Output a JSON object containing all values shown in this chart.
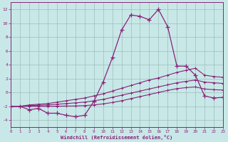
{
  "hours": [
    0,
    1,
    2,
    3,
    4,
    5,
    6,
    7,
    8,
    9,
    10,
    11,
    12,
    13,
    14,
    15,
    16,
    17,
    18,
    19,
    20,
    21,
    22,
    23
  ],
  "temp": [
    -2,
    -2,
    -2.5,
    -2.3,
    -3.0,
    -3.0,
    -3.3,
    -3.5,
    -3.3,
    -1.3,
    1.5,
    5.0,
    9.0,
    11.2,
    11.0,
    10.5,
    12.0,
    9.5,
    3.8,
    3.8,
    2.5,
    -0.5,
    -0.8,
    -0.7
  ],
  "line_top": [
    -2,
    -2,
    -1.8,
    -1.7,
    -1.6,
    -1.4,
    -1.2,
    -1.0,
    -0.8,
    -0.5,
    -0.2,
    0.2,
    0.6,
    1.0,
    1.4,
    1.8,
    2.1,
    2.5,
    2.9,
    3.2,
    3.5,
    2.5,
    2.3,
    2.2
  ],
  "line_mid": [
    -2,
    -2,
    -1.9,
    -1.85,
    -1.8,
    -1.7,
    -1.6,
    -1.5,
    -1.4,
    -1.2,
    -1.0,
    -0.7,
    -0.4,
    -0.1,
    0.2,
    0.5,
    0.8,
    1.1,
    1.4,
    1.6,
    1.8,
    1.5,
    1.4,
    1.3
  ],
  "line_bot": [
    -2,
    -2,
    -2.0,
    -2.0,
    -2.0,
    -1.98,
    -1.96,
    -1.94,
    -1.9,
    -1.8,
    -1.65,
    -1.45,
    -1.2,
    -0.9,
    -0.6,
    -0.3,
    0.0,
    0.3,
    0.55,
    0.7,
    0.8,
    0.5,
    0.4,
    0.35
  ],
  "color": "#882277",
  "bg_color": "#c8e8e8",
  "grid_color": "#9dbdbd",
  "xlabel": "Windchill (Refroidissement éolien,°C)",
  "ylim": [
    -5,
    13
  ],
  "xlim": [
    0,
    23
  ],
  "yticks": [
    -4,
    -2,
    0,
    2,
    4,
    6,
    8,
    10,
    12
  ]
}
